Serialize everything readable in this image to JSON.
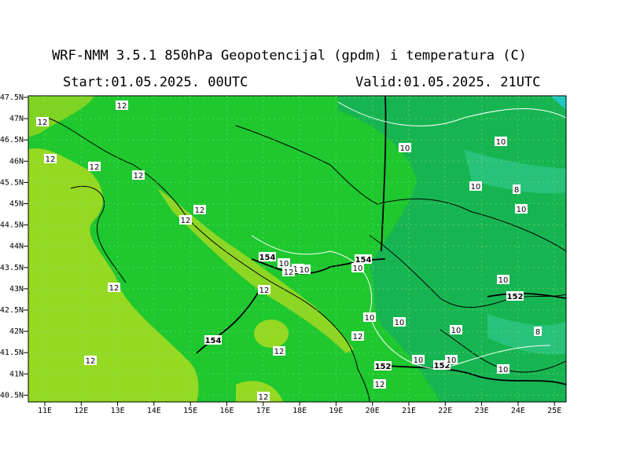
{
  "header": {
    "title": "WRF-NMM 3.5.1  850hPa Geopotencijal (gpdm) i temperatura (C)",
    "start": "Start:01.05.2025.  00UTC",
    "valid": "Valid:01.05.2025.  21UTC"
  },
  "map": {
    "lat_labels": [
      "47.5N",
      "47N",
      "46.5N",
      "46N",
      "45.5N",
      "45N",
      "44.5N",
      "44N",
      "43.5N",
      "43N",
      "42.5N",
      "42N",
      "41.5N",
      "41N",
      "40.5N"
    ],
    "lon_labels": [
      "11E",
      "12E",
      "13E",
      "14E",
      "15E",
      "16E",
      "17E",
      "18E",
      "19E",
      "20E",
      "21E",
      "22E",
      "23E",
      "24E",
      "25E"
    ],
    "contour_labels": [
      "12",
      "12",
      "12",
      "12",
      "12",
      "12",
      "12",
      "154",
      "10",
      "10",
      "12",
      "10",
      "154",
      "10",
      "12",
      "12",
      "10",
      "10",
      "10",
      "8",
      "10",
      "10",
      "152",
      "10",
      "10",
      "10",
      "8",
      "12",
      "154",
      "12",
      "12",
      "152",
      "10",
      "152",
      "10",
      "10",
      "12",
      "12"
    ]
  }
}
